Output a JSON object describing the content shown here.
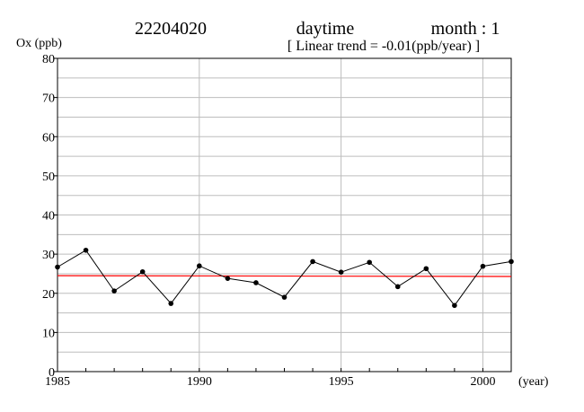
{
  "header": {
    "station": "22204020",
    "period": "daytime",
    "month": "month : 1",
    "trend": "[ Linear trend = -0.01(ppb/year) ]"
  },
  "chart_data": {
    "type": "line",
    "ylabel": "Ox (ppb)",
    "xlabel": "(year)",
    "xlim": [
      1985,
      2001
    ],
    "ylim": [
      0,
      80
    ],
    "x_ticks": [
      1985,
      1990,
      1995,
      2000
    ],
    "y_ticks": [
      0,
      10,
      20,
      30,
      40,
      50,
      60,
      70,
      80
    ],
    "grid": true,
    "series": [
      {
        "color": "#000000",
        "x": [
          1985,
          1986,
          1987,
          1988,
          1989,
          1990,
          1991,
          1992,
          1993,
          1994,
          1995,
          1996,
          1997,
          1998,
          1999,
          2000,
          2001
        ],
        "values": [
          26.7,
          31.0,
          20.6,
          25.5,
          17.4,
          27.0,
          23.8,
          22.7,
          19.0,
          28.1,
          25.4,
          27.9,
          21.7,
          26.3,
          16.9,
          26.9,
          28.1
        ]
      }
    ],
    "trend_line": {
      "color": "#ff0000",
      "x": [
        1985,
        2001
      ],
      "values": [
        24.5,
        24.3
      ]
    }
  }
}
